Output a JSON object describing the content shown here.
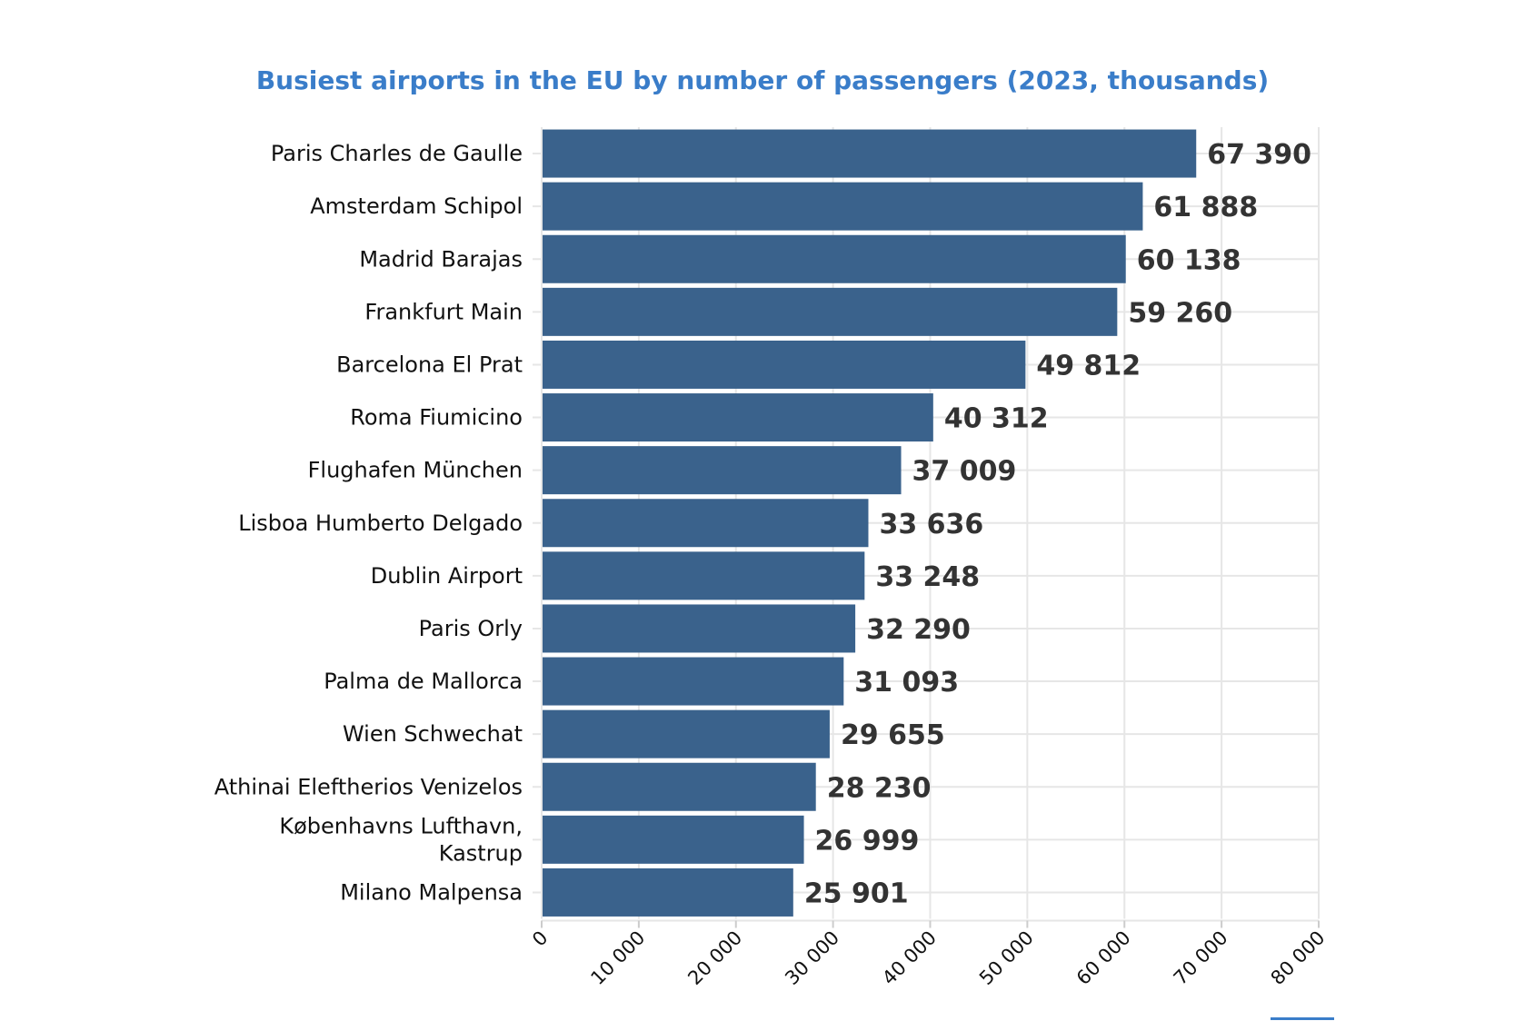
{
  "chart_data": {
    "type": "bar",
    "orientation": "horizontal",
    "title": "Busiest airports in the EU by number of passengers (2023, thousands)",
    "categories": [
      "Paris Charles de Gaulle",
      "Amsterdam Schipol",
      "Madrid Barajas",
      "Frankfurt Main",
      "Barcelona El Prat",
      "Roma Fiumicino",
      "Flughafen München",
      "Lisboa Humberto Delgado",
      "Dublin Airport",
      "Paris Orly",
      "Palma de Mallorca",
      "Wien Schwechat",
      "Athinai Eleftherios Venizelos",
      "Københavns Lufthavn, Kastrup",
      "Milano Malpensa"
    ],
    "values": [
      67390,
      61888,
      60138,
      59260,
      49812,
      40312,
      37009,
      33636,
      33248,
      32290,
      31093,
      29655,
      28230,
      26999,
      25901
    ],
    "value_labels": [
      "67 390",
      "61 888",
      "60 138",
      "59 260",
      "49 812",
      "40 312",
      "37 009",
      "33 636",
      "33 248",
      "32 290",
      "31 093",
      "29 655",
      "28 230",
      "26 999",
      "25 901"
    ],
    "xlim": [
      0,
      80000
    ],
    "xticks": [
      0,
      10000,
      20000,
      30000,
      40000,
      50000,
      60000,
      70000,
      80000
    ],
    "xtick_labels": [
      "0",
      "10 000",
      "20 000",
      "30 000",
      "40 000",
      "50 000",
      "60 000",
      "70 000",
      "80 000"
    ],
    "xlabel": "",
    "ylabel": "",
    "grid": true,
    "legend": "none",
    "colors": {
      "bar": "#3a628c",
      "title": "#3a7dc9",
      "value_label": "#333333",
      "accent_line": "#3a7dc9"
    }
  }
}
